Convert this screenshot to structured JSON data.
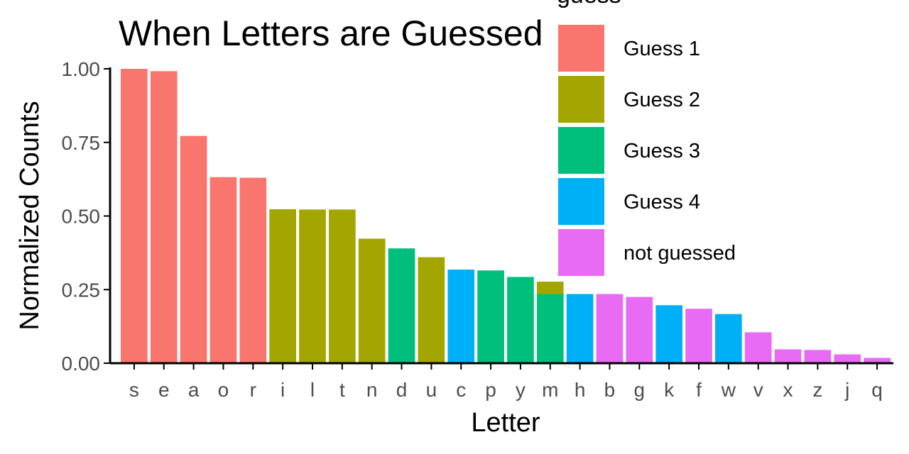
{
  "chart_data": {
    "type": "bar",
    "title": "When Letters are Guessed",
    "xlabel": "Letter",
    "ylabel": "Normalized Counts",
    "ylim": [
      0,
      1.0
    ],
    "yticks": [
      "0.00",
      "0.25",
      "0.50",
      "0.75",
      "1.00"
    ],
    "ytick_values": [
      0,
      0.25,
      0.5,
      0.75,
      1.0
    ],
    "grid": false,
    "legend": {
      "title": "guess",
      "placement": "top-right (inside plot)",
      "entries": [
        {
          "key": "g1",
          "label": "Guess 1",
          "color": "#F8766D"
        },
        {
          "key": "g2",
          "label": "Guess 2",
          "color": "#A3A500"
        },
        {
          "key": "g3",
          "label": "Guess 3",
          "color": "#00BF7D"
        },
        {
          "key": "g4",
          "label": "Guess 4",
          "color": "#00B0F6"
        },
        {
          "key": "ng",
          "label": "not guessed",
          "color": "#E76BF3"
        }
      ]
    },
    "categories": [
      "s",
      "e",
      "a",
      "o",
      "r",
      "i",
      "l",
      "t",
      "n",
      "d",
      "u",
      "c",
      "p",
      "y",
      "m",
      "h",
      "b",
      "g",
      "k",
      "f",
      "w",
      "v",
      "x",
      "z",
      "j",
      "q"
    ],
    "stacks": [
      [
        {
          "group": "g1",
          "value": 1.0
        }
      ],
      [
        {
          "group": "g1",
          "value": 0.992
        }
      ],
      [
        {
          "group": "g1",
          "value": 0.772
        }
      ],
      [
        {
          "group": "g1",
          "value": 0.632
        }
      ],
      [
        {
          "group": "g1",
          "value": 0.63
        }
      ],
      [
        {
          "group": "g2",
          "value": 0.523
        }
      ],
      [
        {
          "group": "g2",
          "value": 0.522
        }
      ],
      [
        {
          "group": "g2",
          "value": 0.522
        }
      ],
      [
        {
          "group": "g2",
          "value": 0.423
        }
      ],
      [
        {
          "group": "g3",
          "value": 0.39
        }
      ],
      [
        {
          "group": "g2",
          "value": 0.36
        }
      ],
      [
        {
          "group": "g4",
          "value": 0.318
        }
      ],
      [
        {
          "group": "g3",
          "value": 0.315
        }
      ],
      [
        {
          "group": "g3",
          "value": 0.293
        }
      ],
      [
        {
          "group": "g3",
          "value": 0.235
        },
        {
          "group": "g2",
          "value": 0.042
        }
      ],
      [
        {
          "group": "g4",
          "value": 0.235
        }
      ],
      [
        {
          "group": "ng",
          "value": 0.235
        }
      ],
      [
        {
          "group": "ng",
          "value": 0.225
        }
      ],
      [
        {
          "group": "g4",
          "value": 0.197
        }
      ],
      [
        {
          "group": "ng",
          "value": 0.185
        }
      ],
      [
        {
          "group": "g4",
          "value": 0.167
        }
      ],
      [
        {
          "group": "ng",
          "value": 0.105
        }
      ],
      [
        {
          "group": "ng",
          "value": 0.047
        }
      ],
      [
        {
          "group": "ng",
          "value": 0.045
        }
      ],
      [
        {
          "group": "ng",
          "value": 0.03
        }
      ],
      [
        {
          "group": "ng",
          "value": 0.018
        }
      ]
    ]
  }
}
